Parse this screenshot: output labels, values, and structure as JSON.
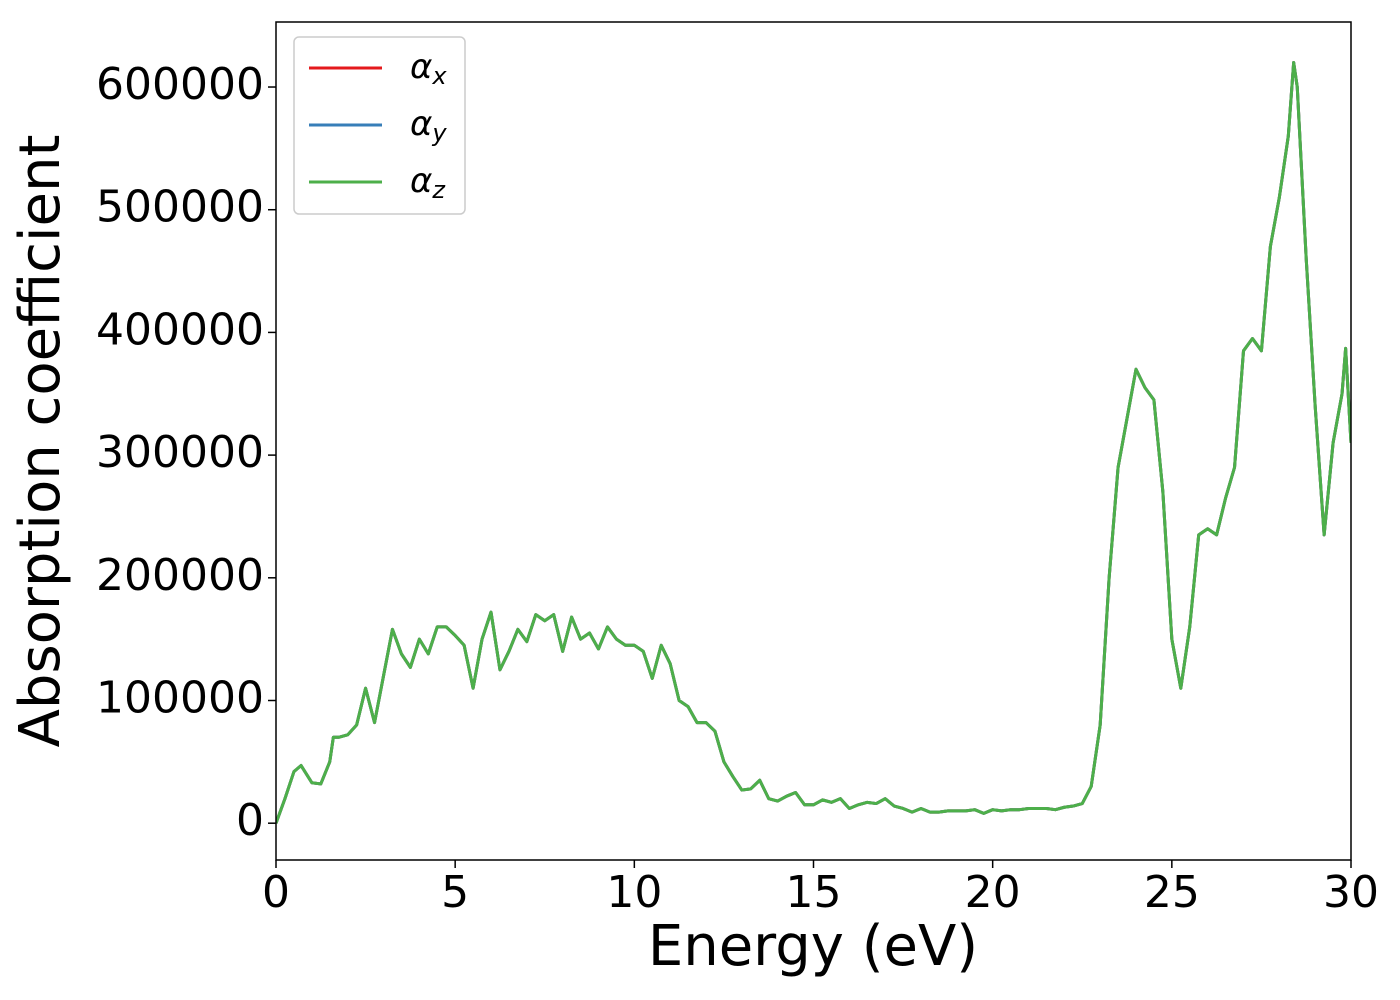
{
  "chart_data": {
    "type": "line",
    "xlabel": "Energy (eV)",
    "ylabel": "Absorption coefficient",
    "x": [
      0,
      0.25,
      0.5,
      0.7,
      1,
      1.25,
      1.5,
      1.6,
      1.75,
      2,
      2.25,
      2.5,
      2.75,
      3,
      3.25,
      3.5,
      3.75,
      4,
      4.25,
      4.5,
      4.75,
      5,
      5.25,
      5.5,
      5.75,
      6,
      6.25,
      6.5,
      6.75,
      7,
      7.25,
      7.5,
      7.75,
      8,
      8.25,
      8.5,
      8.75,
      9,
      9.25,
      9.5,
      9.75,
      10,
      10.25,
      10.5,
      10.75,
      11,
      11.25,
      11.5,
      11.75,
      12,
      12.25,
      12.5,
      12.75,
      13,
      13.25,
      13.5,
      13.75,
      14,
      14.25,
      14.5,
      14.75,
      15,
      15.25,
      15.5,
      15.75,
      16,
      16.25,
      16.5,
      16.75,
      17,
      17.25,
      17.5,
      17.75,
      18,
      18.25,
      18.5,
      18.75,
      19,
      19.25,
      19.5,
      19.75,
      20,
      20.25,
      20.5,
      20.75,
      21,
      21.25,
      21.5,
      21.75,
      22,
      22.25,
      22.5,
      22.75,
      23,
      23.25,
      23.5,
      23.75,
      24,
      24.25,
      24.5,
      24.75,
      25,
      25.25,
      25.5,
      25.75,
      26,
      26.25,
      26.5,
      26.75,
      27,
      27.25,
      27.5,
      27.75,
      28,
      28.25,
      28.4,
      28.5,
      28.75,
      29,
      29.25,
      29.5,
      29.75,
      29.85,
      30
    ],
    "series": [
      {
        "name": "αx",
        "color": "#e41a1c",
        "values": [
          0,
          20000,
          42000,
          47000,
          33000,
          32000,
          50000,
          70000,
          70000,
          72000,
          80000,
          110000,
          82000,
          120000,
          158000,
          138000,
          127000,
          150000,
          138000,
          160000,
          160000,
          153000,
          145000,
          110000,
          150000,
          172000,
          125000,
          140000,
          158000,
          148000,
          170000,
          165000,
          170000,
          140000,
          168000,
          150000,
          155000,
          142000,
          160000,
          150000,
          145000,
          145000,
          140000,
          118000,
          145000,
          130000,
          100000,
          95000,
          82000,
          82000,
          75000,
          50000,
          38000,
          27000,
          28000,
          35000,
          20000,
          18000,
          22000,
          25000,
          15000,
          15000,
          19000,
          17000,
          20000,
          12000,
          15000,
          17000,
          16000,
          20000,
          14000,
          12000,
          9000,
          12000,
          9000,
          9000,
          10000,
          10000,
          10000,
          11000,
          8000,
          11000,
          10000,
          11000,
          11000,
          12000,
          12000,
          12000,
          11000,
          13000,
          14000,
          16000,
          30000,
          80000,
          200000,
          290000,
          330000,
          370000,
          355000,
          345000,
          270000,
          150000,
          110000,
          160000,
          235000,
          240000,
          235000,
          265000,
          290000,
          385000,
          395000,
          385000,
          470000,
          510000,
          560000,
          620000,
          600000,
          460000,
          340000,
          235000,
          310000,
          350000,
          387000,
          310000
        ]
      },
      {
        "name": "αy",
        "color": "#377eb8",
        "values": [
          0,
          20000,
          42000,
          47000,
          33000,
          32000,
          50000,
          70000,
          70000,
          72000,
          80000,
          110000,
          82000,
          120000,
          158000,
          138000,
          127000,
          150000,
          138000,
          160000,
          160000,
          153000,
          145000,
          110000,
          150000,
          172000,
          125000,
          140000,
          158000,
          148000,
          170000,
          165000,
          170000,
          140000,
          168000,
          150000,
          155000,
          142000,
          160000,
          150000,
          145000,
          145000,
          140000,
          118000,
          145000,
          130000,
          100000,
          95000,
          82000,
          82000,
          75000,
          50000,
          38000,
          27000,
          28000,
          35000,
          20000,
          18000,
          22000,
          25000,
          15000,
          15000,
          19000,
          17000,
          20000,
          12000,
          15000,
          17000,
          16000,
          20000,
          14000,
          12000,
          9000,
          12000,
          9000,
          9000,
          10000,
          10000,
          10000,
          11000,
          8000,
          11000,
          10000,
          11000,
          11000,
          12000,
          12000,
          12000,
          11000,
          13000,
          14000,
          16000,
          30000,
          80000,
          200000,
          290000,
          330000,
          370000,
          355000,
          345000,
          270000,
          150000,
          110000,
          160000,
          235000,
          240000,
          235000,
          265000,
          290000,
          385000,
          395000,
          385000,
          470000,
          510000,
          560000,
          620000,
          600000,
          460000,
          340000,
          235000,
          310000,
          350000,
          387000,
          310000
        ]
      },
      {
        "name": "αz",
        "color": "#4daf4a",
        "values": [
          0,
          20000,
          42000,
          47000,
          33000,
          32000,
          50000,
          70000,
          70000,
          72000,
          80000,
          110000,
          82000,
          120000,
          158000,
          138000,
          127000,
          150000,
          138000,
          160000,
          160000,
          153000,
          145000,
          110000,
          150000,
          172000,
          125000,
          140000,
          158000,
          148000,
          170000,
          165000,
          170000,
          140000,
          168000,
          150000,
          155000,
          142000,
          160000,
          150000,
          145000,
          145000,
          140000,
          118000,
          145000,
          130000,
          100000,
          95000,
          82000,
          82000,
          75000,
          50000,
          38000,
          27000,
          28000,
          35000,
          20000,
          18000,
          22000,
          25000,
          15000,
          15000,
          19000,
          17000,
          20000,
          12000,
          15000,
          17000,
          16000,
          20000,
          14000,
          12000,
          9000,
          12000,
          9000,
          9000,
          10000,
          10000,
          10000,
          11000,
          8000,
          11000,
          10000,
          11000,
          11000,
          12000,
          12000,
          12000,
          11000,
          13000,
          14000,
          16000,
          30000,
          80000,
          200000,
          290000,
          330000,
          370000,
          355000,
          345000,
          270000,
          150000,
          110000,
          160000,
          235000,
          240000,
          235000,
          265000,
          290000,
          385000,
          395000,
          385000,
          470000,
          510000,
          560000,
          620000,
          600000,
          460000,
          340000,
          235000,
          310000,
          350000,
          387000,
          310000
        ]
      }
    ],
    "xlim": [
      0,
      30
    ],
    "xticks": [
      0,
      5,
      10,
      15,
      20,
      25,
      30
    ],
    "ylim": [
      -30000,
      653000
    ],
    "yticks": [
      0,
      100000,
      200000,
      300000,
      400000,
      500000,
      600000
    ],
    "legend": "upper left"
  }
}
